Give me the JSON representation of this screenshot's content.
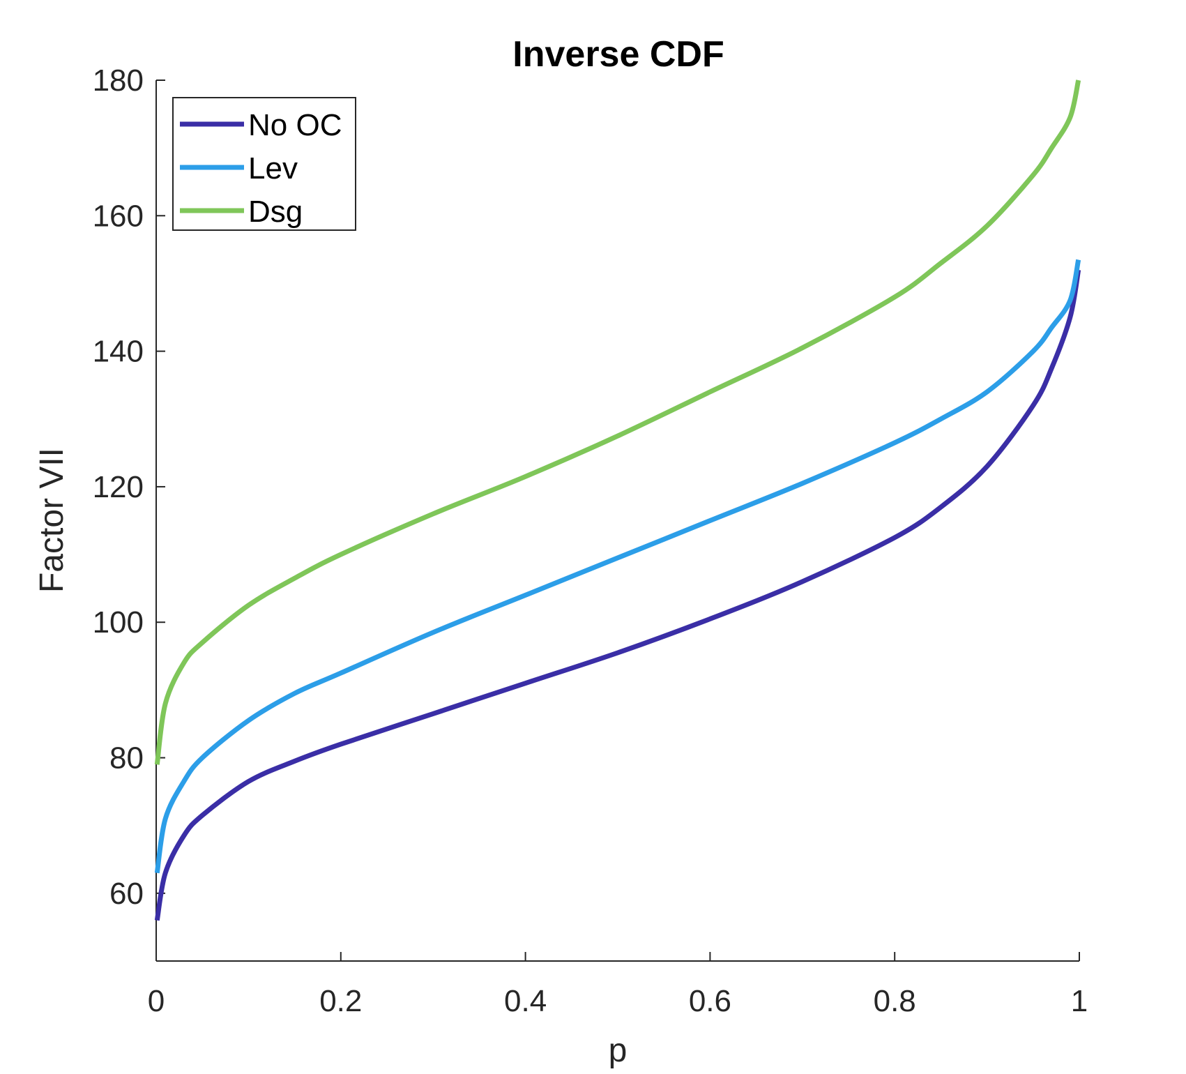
{
  "chart_data": {
    "type": "line",
    "title": "Inverse CDF",
    "xlabel": "p",
    "ylabel": "Factor VII",
    "xlim": [
      0,
      1
    ],
    "ylim": [
      50,
      180
    ],
    "xticks": [
      0,
      0.2,
      0.4,
      0.6,
      0.8,
      1
    ],
    "xtick_labels": [
      "0",
      "0.2",
      "0.4",
      "0.6",
      "0.8",
      "1"
    ],
    "yticks": [
      60,
      80,
      100,
      120,
      140,
      160,
      180
    ],
    "ytick_labels": [
      "60",
      "80",
      "100",
      "120",
      "140",
      "160",
      "180"
    ],
    "grid": false,
    "legend_position": "top-left",
    "x": [
      0.001,
      0.01,
      0.03,
      0.05,
      0.1,
      0.15,
      0.2,
      0.3,
      0.4,
      0.5,
      0.6,
      0.7,
      0.8,
      0.85,
      0.9,
      0.95,
      0.97,
      0.99,
      0.999
    ],
    "series": [
      {
        "name": "No OC",
        "color": "#3a2ea6",
        "values": [
          56,
          63,
          68.5,
          71.5,
          76.5,
          79.5,
          82,
          86.5,
          91,
          95.5,
          100.5,
          106,
          112.5,
          117,
          123,
          132,
          137.5,
          145,
          152
        ]
      },
      {
        "name": "Lev",
        "color": "#2c9ee8",
        "values": [
          63,
          71,
          76.5,
          80,
          85.5,
          89.5,
          92.5,
          98.5,
          104,
          109.5,
          115,
          120.5,
          126.5,
          130,
          134,
          140,
          143.5,
          147.5,
          153.5
        ]
      },
      {
        "name": "Dsg",
        "color": "#7fc659",
        "values": [
          79,
          88,
          94,
          97,
          102.5,
          106.5,
          110,
          116,
          121.5,
          127.5,
          134,
          140.5,
          148,
          153,
          158.5,
          166,
          170,
          174.5,
          180
        ]
      }
    ]
  }
}
